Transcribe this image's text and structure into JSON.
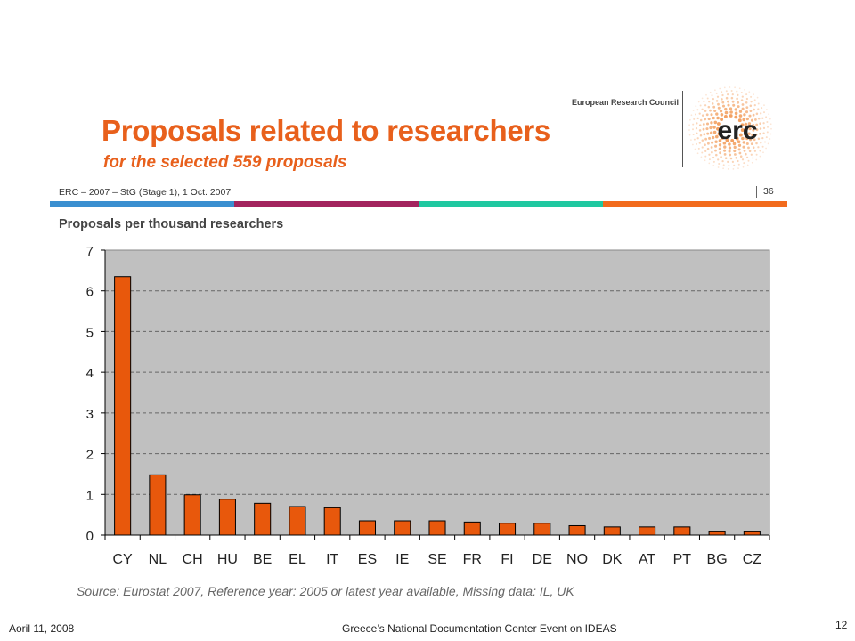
{
  "slide": {
    "title": "Proposals related to researchers",
    "subtitle": "for the selected 559 proposals",
    "reference_line": "ERC – 2007 – StG (Stage 1), 1 Oct. 2007",
    "slide_page": "36",
    "org_name": "European Research Council",
    "logo_text": "erc"
  },
  "strip_colors": [
    "#3a8fd0",
    "#a3245e",
    "#1fc8a0",
    "#f26b1d"
  ],
  "chart_data": {
    "type": "bar",
    "title": "Proposals per thousand researchers",
    "xlabel": "",
    "ylabel": "",
    "categories": [
      "CY",
      "NL",
      "CH",
      "HU",
      "BE",
      "EL",
      "IT",
      "ES",
      "IE",
      "SE",
      "FR",
      "FI",
      "DE",
      "NO",
      "DK",
      "AT",
      "PT",
      "BG",
      "CZ"
    ],
    "values": [
      6.35,
      1.48,
      0.99,
      0.88,
      0.78,
      0.7,
      0.67,
      0.35,
      0.35,
      0.35,
      0.32,
      0.29,
      0.29,
      0.23,
      0.2,
      0.2,
      0.2,
      0.08,
      0.08
    ],
    "ylim": [
      0,
      7
    ],
    "yticks": [
      0,
      1,
      2,
      3,
      4,
      5,
      6,
      7
    ],
    "grid": true,
    "bar_color": "#e8580c",
    "plot_bg": "#c0c0c0"
  },
  "source_note": "Source: Eurostat 2007, Reference year: 2005 or latest year available, Missing data: IL, UK",
  "footer": {
    "date": "Aoril 11, 2008",
    "event": "Greece’s National Documentation Center Event on IDEAS",
    "page": "12"
  }
}
